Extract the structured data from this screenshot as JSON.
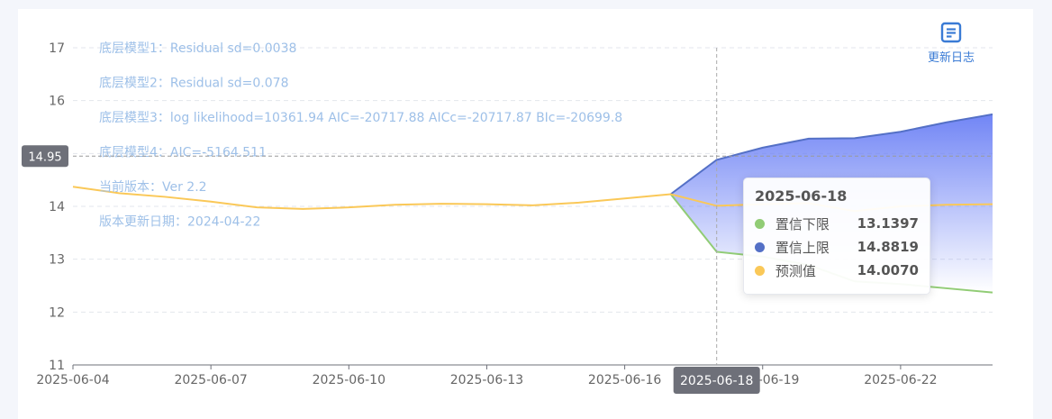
{
  "changelog": {
    "label": "更新日志",
    "icon": "document-icon"
  },
  "chart_data": {
    "type": "line",
    "x": [
      "2025-06-04",
      "2025-06-05",
      "2025-06-06",
      "2025-06-07",
      "2025-06-08",
      "2025-06-09",
      "2025-06-10",
      "2025-06-11",
      "2025-06-12",
      "2025-06-13",
      "2025-06-14",
      "2025-06-15",
      "2025-06-16",
      "2025-06-17",
      "2025-06-18",
      "2025-06-19",
      "2025-06-20",
      "2025-06-21",
      "2025-06-22",
      "2025-06-23",
      "2025-06-24"
    ],
    "x_ticks": [
      "2025-06-04",
      "2025-06-07",
      "2025-06-10",
      "2025-06-13",
      "2025-06-16",
      "2025-06-19",
      "2025-06-22"
    ],
    "ylim": [
      11,
      17
    ],
    "y_ticks": [
      11,
      12,
      13,
      14,
      15,
      16,
      17
    ],
    "grid": true,
    "annotations": [
      "底层模型1：Residual sd=0.0038",
      "底层模型2：Residual sd=0.078",
      "底层模型3：log likelihood=10361.94 AIC=-20717.88 AICc=-20717.87 BIc=-20699.8",
      "底层模型4：AIC=-5164.511",
      "当前版本：Ver 2.2",
      "版本更新日期：2024-04-22"
    ],
    "series": [
      {
        "name": "预测值",
        "color": "#fac858",
        "values": [
          14.37,
          14.25,
          14.18,
          14.09,
          13.98,
          13.95,
          13.98,
          14.03,
          14.05,
          14.04,
          14.02,
          14.07,
          14.15,
          14.23,
          14.01,
          14.04,
          14.06,
          13.91,
          14.0,
          14.03,
          14.04
        ]
      },
      {
        "name": "置信下限",
        "color": "#91cc75",
        "values": [
          null,
          null,
          null,
          null,
          null,
          null,
          null,
          null,
          null,
          null,
          null,
          null,
          null,
          14.23,
          13.14,
          13.05,
          12.89,
          12.58,
          12.53,
          12.45,
          12.37
        ]
      },
      {
        "name": "置信上限",
        "color": "#5470c6",
        "values": [
          null,
          null,
          null,
          null,
          null,
          null,
          null,
          null,
          null,
          null,
          null,
          null,
          null,
          14.23,
          14.88,
          15.11,
          15.28,
          15.29,
          15.41,
          15.59,
          15.74
        ]
      }
    ],
    "cursor": {
      "x": "2025-06-18",
      "y_label": "14.95",
      "x_label": "2025-06-18"
    },
    "tooltip": {
      "title": "2025-06-18",
      "rows": [
        {
          "name": "置信下限",
          "value": "13.1397",
          "color": "#91cc75"
        },
        {
          "name": "置信上限",
          "value": "14.8819",
          "color": "#5470c6"
        },
        {
          "name": "预测值",
          "value": "14.0070",
          "color": "#fac858"
        }
      ]
    }
  }
}
